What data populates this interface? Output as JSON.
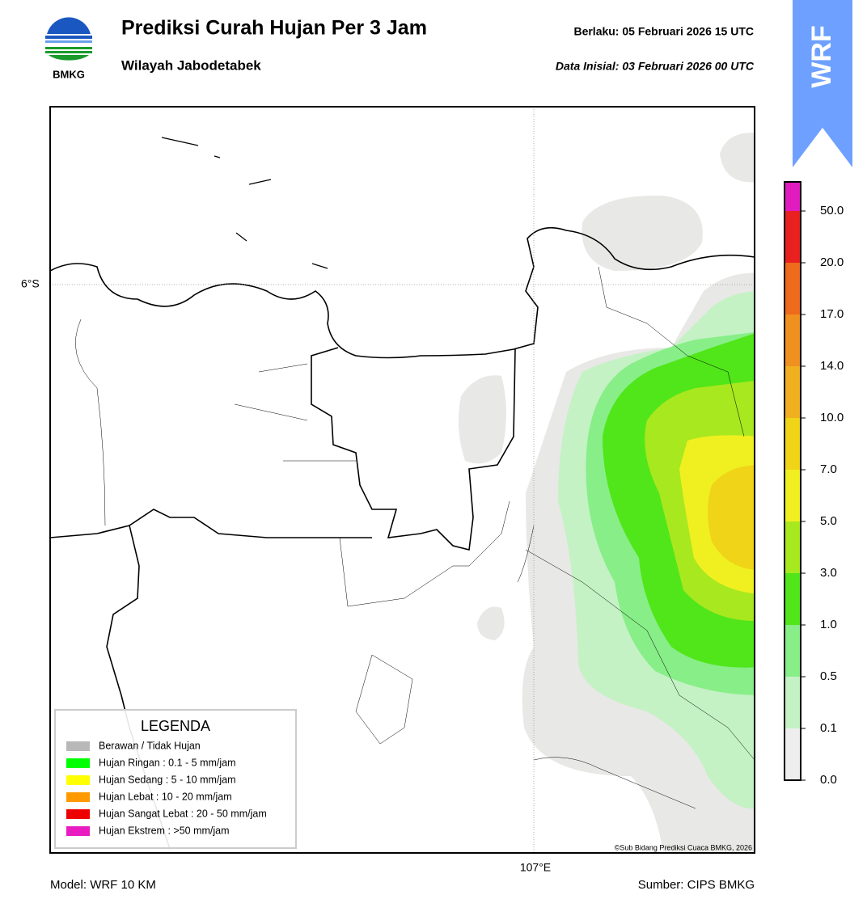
{
  "header": {
    "title": "Prediksi Curah Hujan Per 3 Jam",
    "subtitle": "Wilayah Jabodetabek",
    "valid": "Berlaku:  05 Februari 2026 15 UTC",
    "init": "Data Inisial:  03 Februari 2026 00 UTC",
    "logo": "BMKG",
    "badge": "WRF"
  },
  "map": {
    "lat_label": "6°S",
    "lon_label": "107°E",
    "credit": "©Sub Bidang Prediksi Cuaca BMKG, 2026"
  },
  "legend": {
    "title": "LEGENDA",
    "items": [
      {
        "label": "Berawan / Tidak Hujan",
        "color": "#b8b8b8"
      },
      {
        "label": "Hujan Ringan : 0.1 - 5 mm/jam",
        "color": "#00ff00"
      },
      {
        "label": "Hujan Sedang : 5 - 10 mm/jam",
        "color": "#ffff00"
      },
      {
        "label": "Hujan Lebat : 10 - 20 mm/jam",
        "color": "#ff9900"
      },
      {
        "label": "Hujan Sangat Lebat : 20 - 50 mm/jam",
        "color": "#ee0000"
      },
      {
        "label": "Hujan Ekstrem : >50 mm/jam",
        "color": "#e81cc0"
      }
    ]
  },
  "colorbar": {
    "colors": [
      "#eeeeee",
      "#c4f2c4",
      "#88ee88",
      "#50e61a",
      "#a8e81e",
      "#f0f020",
      "#f0d418",
      "#f0b020",
      "#f09020",
      "#ee6a1c",
      "#e82020",
      "#e01cc0"
    ],
    "ticks": [
      "0.0",
      "0.1",
      "0.5",
      "1.0",
      "3.0",
      "5.0",
      "7.0",
      "10.0",
      "14.0",
      "17.0",
      "20.0",
      "50.0"
    ]
  },
  "footer": {
    "model": "Model: WRF 10 KM",
    "source": "Sumber: CIPS BMKG"
  }
}
